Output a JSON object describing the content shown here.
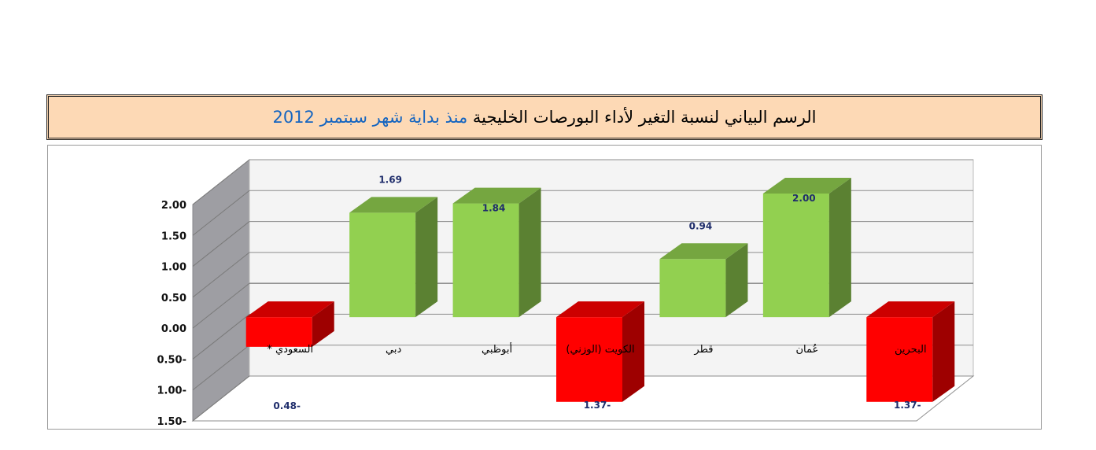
{
  "title": {
    "main": "الرسم البياني لنسبة التغير لأداء البورصات الخليجية",
    "accent": "منذ بداية شهر سبتمبر 2012"
  },
  "colors": {
    "positive": "#92d050",
    "negative": "#ff0000",
    "title_bg": "#fdd9b5",
    "accent": "#1565c0",
    "value_label": "#1f2d6b"
  },
  "chart_data": {
    "type": "bar",
    "style": "3d-column",
    "title": "الرسم البياني لنسبة التغير لأداء البورصات الخليجية منذ بداية شهر سبتمبر 2012",
    "categories": [
      "السعودي *",
      "دبي",
      "أبوظبي",
      "الكويت (الوزني)",
      "قطر",
      "عُمان",
      "البحرين"
    ],
    "values": [
      -0.48,
      1.69,
      1.84,
      -1.37,
      0.94,
      2.0,
      -1.37
    ],
    "value_labels": [
      "0.48-",
      "1.69",
      "1.84",
      "1.37-",
      "0.94",
      "2.00",
      "1.37-"
    ],
    "y_ticks": [
      "2.00",
      "1.50",
      "1.00",
      "0.50",
      "0.00",
      "0.50-",
      "1.00-",
      "1.50-"
    ],
    "ylim": [
      -1.5,
      2.0
    ],
    "grid": true,
    "legend": "none"
  }
}
